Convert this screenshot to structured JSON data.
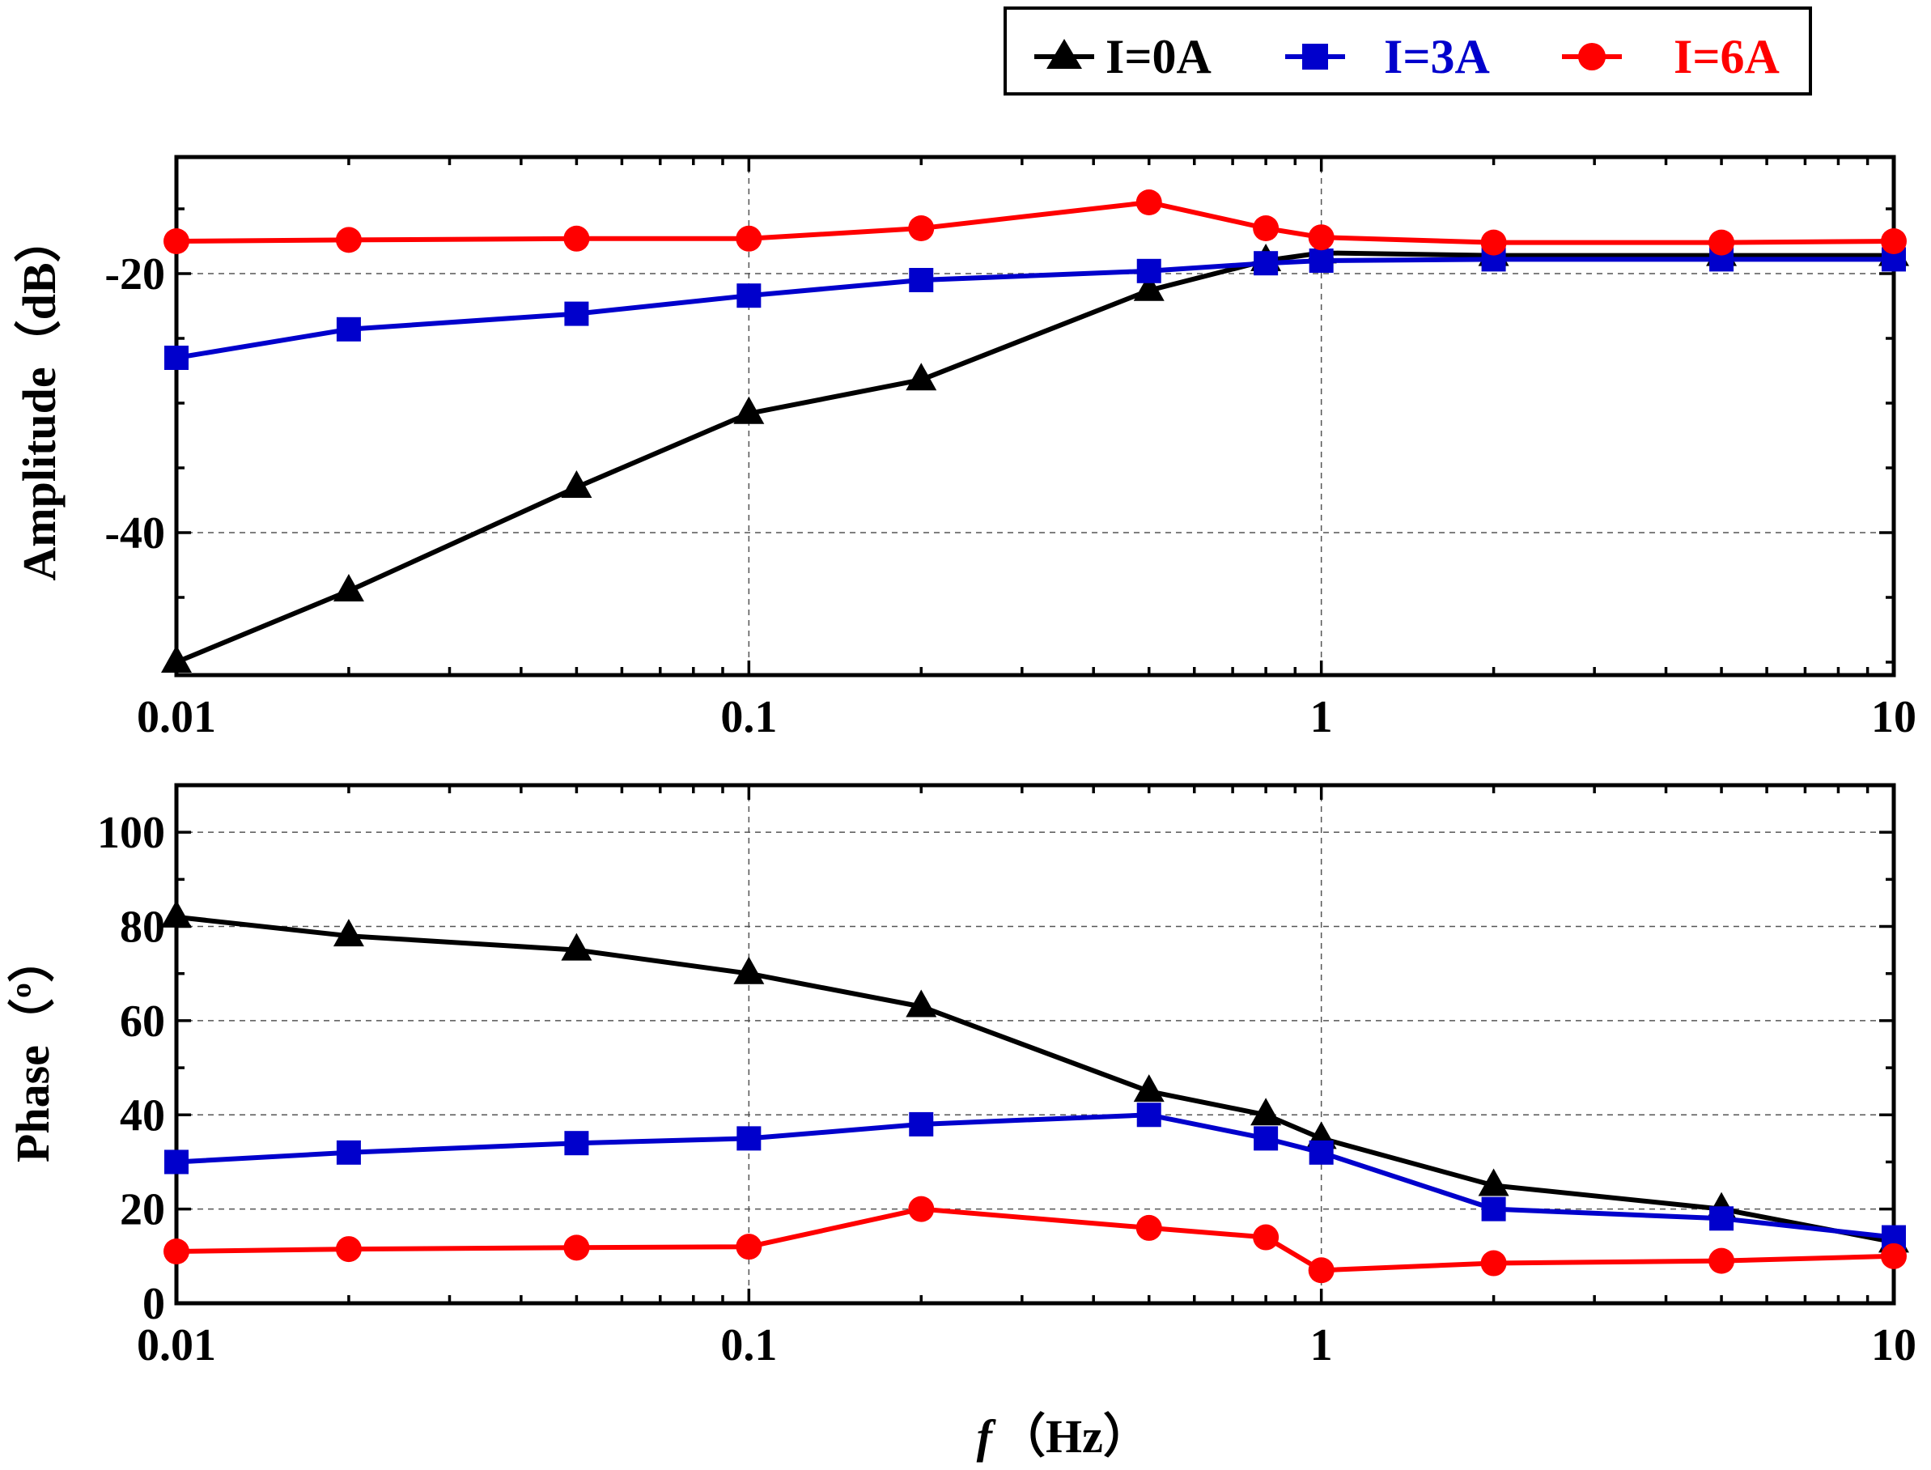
{
  "chart_data": [
    {
      "type": "line",
      "panel": "top",
      "xscale": "log",
      "xlim": [
        0.01,
        10
      ],
      "ylim": [
        -51,
        -11
      ],
      "yticks": [
        -20,
        -40
      ],
      "ytick_labels": [
        "-20",
        "-40"
      ],
      "xticks": [
        0.01,
        0.1,
        1,
        10
      ],
      "xtick_labels": [
        "0.01",
        "0.1",
        "1",
        "10"
      ],
      "ylabel": "Amplitude（dB）",
      "xlabel": "",
      "grid": true,
      "x": [
        0.01,
        0.02,
        0.05,
        0.1,
        0.2,
        0.5,
        0.8,
        1,
        2,
        5,
        10
      ],
      "series": [
        {
          "name": "I=0A",
          "color": "#000000",
          "marker": "triangle",
          "values": [
            -50.0,
            -44.5,
            -36.5,
            -30.8,
            -28.2,
            -21.3,
            -19.0,
            -18.4,
            -18.6,
            -18.6,
            -18.6
          ]
        },
        {
          "name": "I=3A",
          "color": "#0000cc",
          "marker": "square",
          "values": [
            -26.5,
            -24.3,
            -23.1,
            -21.7,
            -20.5,
            -19.8,
            -19.2,
            -19.0,
            -18.9,
            -18.9,
            -18.9
          ]
        },
        {
          "name": "I=6A",
          "color": "#ff0000",
          "marker": "circle",
          "values": [
            -17.5,
            -17.4,
            -17.3,
            -17.3,
            -16.5,
            -14.5,
            -16.5,
            -17.2,
            -17.6,
            -17.6,
            -17.5
          ]
        }
      ]
    },
    {
      "type": "line",
      "panel": "bottom",
      "xscale": "log",
      "xlim": [
        0.01,
        10
      ],
      "ylim": [
        0,
        110
      ],
      "yticks": [
        0,
        20,
        40,
        60,
        80,
        100
      ],
      "ytick_labels": [
        "0",
        "20",
        "40",
        "60",
        "80",
        "100"
      ],
      "xticks": [
        0.01,
        0.1,
        1,
        10
      ],
      "xtick_labels": [
        "0.01",
        "0.1",
        "1",
        "10"
      ],
      "ylabel": "Phase（º）",
      "xlabel_f": "f",
      "xlabel_rest": "（Hz）",
      "grid": true,
      "x": [
        0.01,
        0.02,
        0.05,
        0.1,
        0.2,
        0.5,
        0.8,
        1,
        2,
        5,
        10
      ],
      "series": [
        {
          "name": "I=0A",
          "color": "#000000",
          "marker": "triangle",
          "values": [
            82,
            78,
            75,
            70,
            63,
            45,
            40,
            35,
            25,
            20,
            13
          ]
        },
        {
          "name": "I=3A",
          "color": "#0000cc",
          "marker": "square",
          "values": [
            30,
            32,
            34,
            35,
            38,
            40,
            35,
            32,
            20,
            18,
            14
          ]
        },
        {
          "name": "I=6A",
          "color": "#ff0000",
          "marker": "circle",
          "values": [
            11,
            11.5,
            11.8,
            12,
            20,
            16,
            14,
            7,
            8.5,
            9,
            10
          ]
        }
      ]
    }
  ],
  "legend": {
    "placement": "top-right",
    "items": [
      {
        "label": "I=0A",
        "color": "#000000",
        "marker": "triangle"
      },
      {
        "label": "I=3A",
        "color": "#0000cc",
        "marker": "square"
      },
      {
        "label": "I=6A",
        "color": "#ff0000",
        "marker": "circle"
      }
    ]
  }
}
